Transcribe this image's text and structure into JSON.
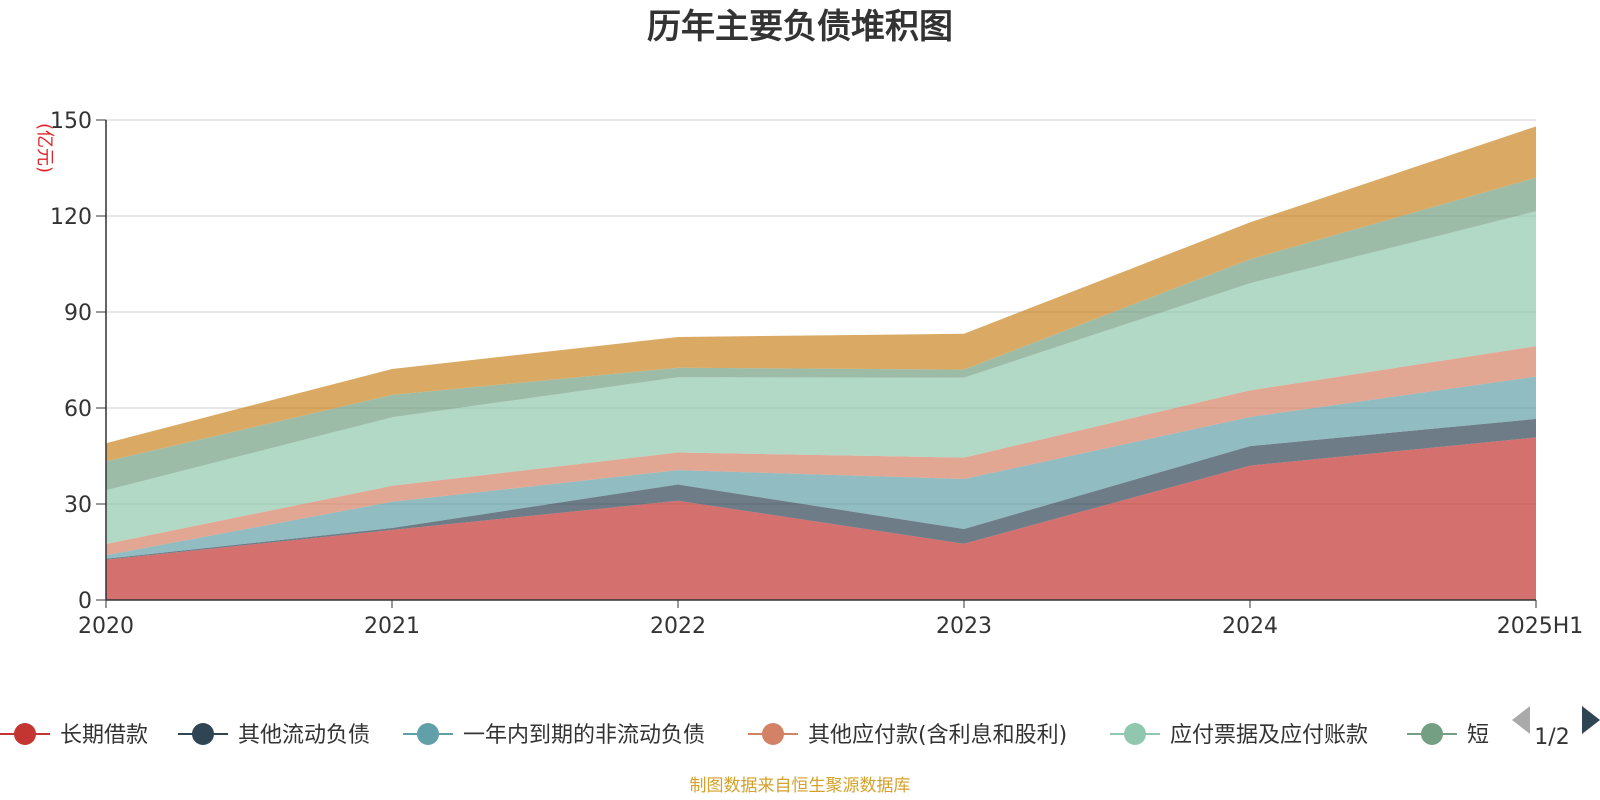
{
  "title": "历年主要负债堆积图",
  "source_note": "制图数据来自恒生聚源数据库",
  "pager": {
    "label": "1/2"
  },
  "chart_data": {
    "type": "area",
    "stacked": true,
    "title": "历年主要负债堆积图",
    "ylabel": "(亿元)",
    "ylim": [
      0,
      150
    ],
    "yticks": [
      0,
      30,
      60,
      90,
      120,
      150
    ],
    "grid": true,
    "legend_position": "bottom",
    "x": [
      "2020",
      "2021",
      "2022",
      "2023",
      "2024",
      "2025H1"
    ],
    "series": [
      {
        "name": "长期借款",
        "color": "#c23531",
        "values": [
          12.6,
          21.9,
          31.0,
          17.6,
          42.0,
          50.8
        ]
      },
      {
        "name": "其他流动负债",
        "color": "#2f4554",
        "values": [
          0.3,
          0.6,
          5.1,
          4.6,
          6.1,
          5.8
        ]
      },
      {
        "name": "一年内到期的非流动负债",
        "color": "#61a0a8",
        "values": [
          1.1,
          8.2,
          4.5,
          15.6,
          9.1,
          13.2
        ]
      },
      {
        "name": "其他应付款(含利息和股利)",
        "color": "#d48265",
        "values": [
          3.5,
          5.0,
          5.5,
          6.7,
          8.3,
          9.5
        ]
      },
      {
        "name": "应付票据及应付账款",
        "color": "#91c7ae",
        "values": [
          16.8,
          21.4,
          23.5,
          25.0,
          33.5,
          42.2
        ]
      },
      {
        "name": "短期借款",
        "color": "#749f83",
        "values": [
          9.0,
          7.0,
          3.0,
          2.5,
          7.5,
          10.5
        ]
      },
      {
        "name": "",
        "color": "#ca8622",
        "values": [
          5.7,
          8.1,
          9.6,
          11.2,
          11.5,
          16.0
        ]
      }
    ],
    "legend_visible": [
      "长期借款",
      "其他流动负债",
      "一年内到期的非流动负债",
      "其他应付款(含利息和股利)",
      "应付票据及应付账款",
      "短"
    ]
  }
}
